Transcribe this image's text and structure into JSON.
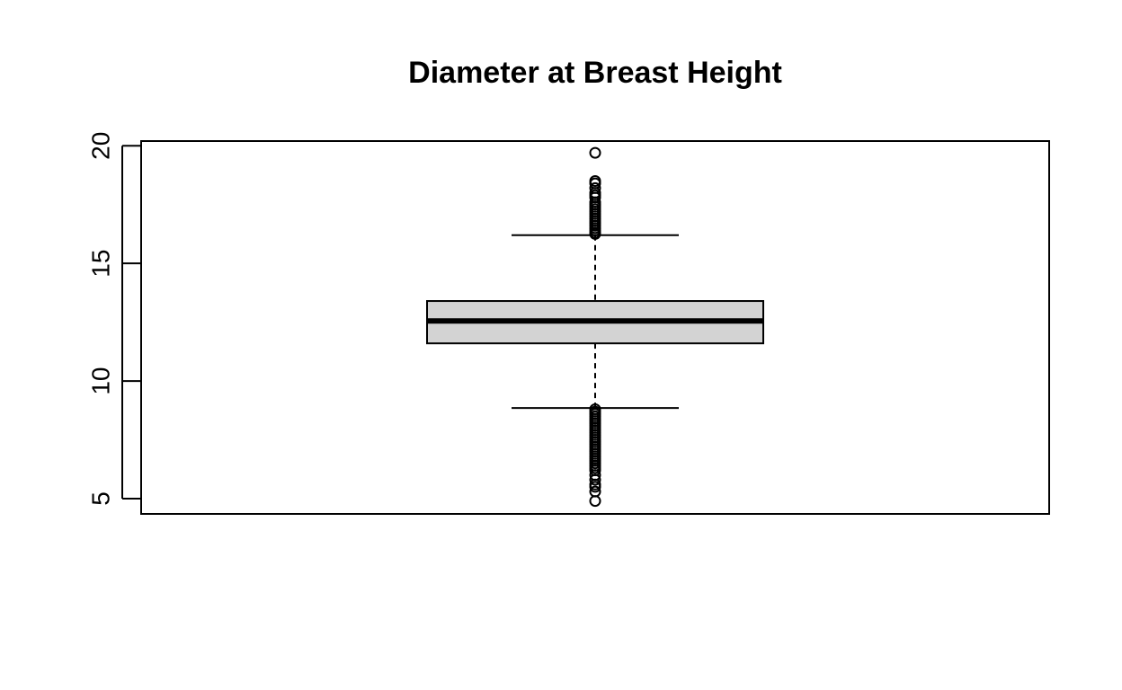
{
  "chart_data": {
    "type": "box",
    "title": "Diameter at Breast Height",
    "xlabel": "",
    "ylabel": "",
    "ylim": [
      4.35,
      20.2
    ],
    "yticks": [
      5,
      10,
      15,
      20
    ],
    "grid": false,
    "box": {
      "q1": 11.6,
      "median": 12.55,
      "q3": 13.4,
      "whisker_low": 8.85,
      "whisker_high": 16.2,
      "outliers_high": [
        16.25,
        16.3,
        16.4,
        16.5,
        16.6,
        16.7,
        16.8,
        16.9,
        17.0,
        17.1,
        17.2,
        17.3,
        17.4,
        17.5,
        17.6,
        17.8,
        17.9,
        18.0,
        18.2,
        18.4,
        18.5,
        19.7
      ],
      "outliers_low": [
        8.8,
        8.7,
        8.6,
        8.5,
        8.4,
        8.3,
        8.2,
        8.1,
        8.0,
        7.9,
        7.8,
        7.7,
        7.6,
        7.5,
        7.4,
        7.3,
        7.2,
        7.1,
        7.0,
        6.9,
        6.8,
        6.7,
        6.6,
        6.5,
        6.4,
        6.3,
        6.2,
        6.0,
        5.8,
        5.6,
        5.5,
        5.3,
        4.9
      ]
    },
    "colors": {
      "box_fill": "#d3d3d3",
      "stroke": "#000000"
    }
  }
}
